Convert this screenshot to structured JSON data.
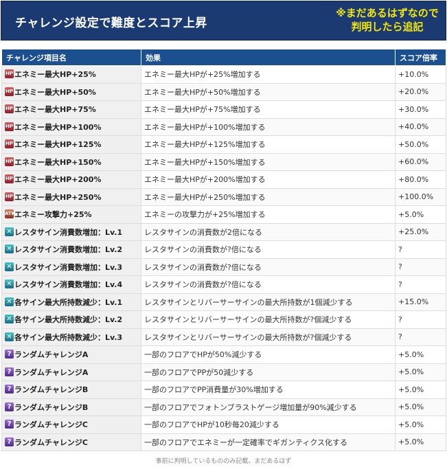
{
  "banner": {
    "title": "チャレンジ設定で難度とスコア上昇",
    "note_line1": "※まだあるはずなので",
    "note_line2": "判明したら追記"
  },
  "table": {
    "headers": [
      "チャレンジ項目名",
      "効果",
      "スコア倍率"
    ],
    "rows": [
      {
        "icon": "hp",
        "name": "エネミー最大HP+25%",
        "effect": "エネミー最大HPが+25%増加する",
        "score": "+10.0%"
      },
      {
        "icon": "hp",
        "name": "エネミー最大HP+50%",
        "effect": "エネミー最大HPが+50%増加する",
        "score": "+20.0%"
      },
      {
        "icon": "hp",
        "name": "エネミー最大HP+75%",
        "effect": "エネミー最大HPが+75%増加する",
        "score": "+30.0%"
      },
      {
        "icon": "hp",
        "name": "エネミー最大HP+100%",
        "effect": "エネミー最大HPが+100%増加する",
        "score": "+40.0%"
      },
      {
        "icon": "hp",
        "name": "エネミー最大HP+125%",
        "effect": "エネミー最大HPが+125%増加する",
        "score": "+50.0%"
      },
      {
        "icon": "hp",
        "name": "エネミー最大HP+150%",
        "effect": "エネミー最大HPが+150%増加する",
        "score": "+60.0%"
      },
      {
        "icon": "hp",
        "name": "エネミー最大HP+200%",
        "effect": "エネミー最大HPが+200%増加する",
        "score": "+80.0%"
      },
      {
        "icon": "hp",
        "name": "エネミー最大HP+250%",
        "effect": "エネミー最大HPが+250%増加する",
        "score": "+100.0%"
      },
      {
        "icon": "atk",
        "name": "エネミー攻撃力+25%",
        "effect": "エネミーの攻撃力が+25%増加する",
        "score": "+5.0%"
      },
      {
        "icon": "sign",
        "name": "レスタサイン消費数増加：Lv.1",
        "effect": "レスタサインの消費数が2倍になる",
        "score": "+25.0%"
      },
      {
        "icon": "sign",
        "name": "レスタサイン消費数増加：Lv.2",
        "effect": "レスタサインの消費数が?倍になる",
        "score": "?"
      },
      {
        "icon": "sign",
        "name": "レスタサイン消費数増加：Lv.3",
        "effect": "レスタサインの消費数が?倍になる",
        "score": "?"
      },
      {
        "icon": "sign",
        "name": "レスタサイン消費数増加：Lv.4",
        "effect": "レスタサインの消費数が?倍になる",
        "score": "?"
      },
      {
        "icon": "sign",
        "name": "各サイン最大所持数減少：Lv.1",
        "effect": "レスタサインとリバーサーサインの最大所持数が1個減少する",
        "score": "+15.0%"
      },
      {
        "icon": "sign",
        "name": "各サイン最大所持数減少：Lv.2",
        "effect": "レスタサインとリバーサーサインの最大所持数が?個減少する",
        "score": "?"
      },
      {
        "icon": "sign",
        "name": "各サイン最大所持数減少：Lv.3",
        "effect": "レスタサインとリバーサーサインの最大所持数が?個減少する",
        "score": "?"
      },
      {
        "icon": "rand",
        "name": "ランダムチャレンジA",
        "effect": "一部のフロアでHPが50%減少する",
        "score": "+5.0%"
      },
      {
        "icon": "rand",
        "name": "ランダムチャレンジA",
        "effect": "一部のフロアでPPが50減少する",
        "score": "+5.0%"
      },
      {
        "icon": "rand",
        "name": "ランダムチャレンジB",
        "effect": "一部のフロアでPP消費量が30%増加する",
        "score": "+5.0%"
      },
      {
        "icon": "rand",
        "name": "ランダムチャレンジB",
        "effect": "一部のフロアでフォトンブラストゲージ増加量が90%減少する",
        "score": "+5.0%"
      },
      {
        "icon": "rand",
        "name": "ランダムチャレンジC",
        "effect": "一部のフロアでHPが10秒毎20減少する",
        "score": "+5.0%"
      },
      {
        "icon": "rand",
        "name": "ランダムチャレンジC",
        "effect": "一部のフロアでエネミーが一定確率でギガンティクス化する",
        "score": "+5.0%"
      }
    ]
  },
  "icons": {
    "hp": {
      "name": "enemy-hp-icon",
      "glyph": "HP"
    },
    "atk": {
      "name": "enemy-attack-icon",
      "glyph": "ATK"
    },
    "sign": {
      "name": "resta-sign-icon",
      "glyph": "✕"
    },
    "rand": {
      "name": "random-challenge-icon",
      "glyph": "?"
    }
  },
  "footer": "事前に判明しているもののみ記載。まだあるはず",
  "colors": {
    "banner_bg": "#1c3a72",
    "banner_note": "#f5e800",
    "header_bg": "#1c4f8f"
  }
}
